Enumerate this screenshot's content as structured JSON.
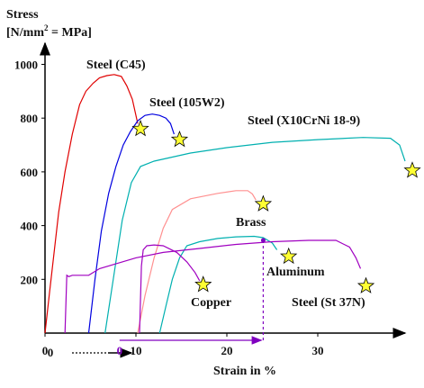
{
  "chart_data": {
    "type": "line",
    "ylabel_line1": "Stress",
    "ylabel_line2_prefix": "[N/mm",
    "ylabel_line2_sup": "2",
    "ylabel_line2_suffix": " = MPa]",
    "xlabel": "Strain in %",
    "xlim": [
      0,
      40
    ],
    "ylim": [
      0,
      1050
    ],
    "x_ticks": [
      0,
      10,
      20,
      30
    ],
    "y_ticks": [
      200,
      400,
      600,
      800,
      1000
    ],
    "offset_annotation": {
      "from_label": "0",
      "to_label": "0",
      "marker_x": 24,
      "marker_y": 345,
      "color": "#8000c0"
    },
    "series": [
      {
        "name": "Steel (C45)",
        "color": "#e00000",
        "x": [
          0,
          0.5,
          1.0,
          1.5,
          2.2,
          3.0,
          3.8,
          4.5,
          5.3,
          6.0,
          6.8,
          7.6,
          8.4,
          9.0,
          9.6,
          10.2
        ],
        "y": [
          0,
          150,
          300,
          450,
          600,
          740,
          850,
          900,
          930,
          950,
          958,
          962,
          955,
          920,
          870,
          780
        ],
        "fracture": [
          10.5,
          760
        ]
      },
      {
        "name": "Steel (105W2)",
        "color": "#0000e0",
        "x": [
          4.8,
          5.5,
          6.2,
          7.0,
          7.8,
          8.6,
          9.4,
          10.2,
          11.0,
          11.8,
          12.6,
          13.3,
          13.8,
          14.2
        ],
        "y": [
          0,
          200,
          380,
          520,
          620,
          700,
          750,
          790,
          810,
          815,
          810,
          800,
          780,
          740
        ],
        "fracture": [
          14.8,
          720
        ]
      },
      {
        "name": "Steel (X10CrNi 18-9)",
        "color": "#00b0b0",
        "x": [
          6.6,
          7.5,
          8.5,
          9.5,
          10.5,
          12.0,
          16.0,
          20.0,
          25.0,
          30.0,
          35.0,
          38.0,
          39.0,
          39.6
        ],
        "y": [
          0,
          200,
          420,
          560,
          620,
          640,
          670,
          690,
          710,
          720,
          728,
          725,
          700,
          640
        ],
        "fracture": [
          40.4,
          605
        ]
      },
      {
        "name": "Brass",
        "color": "#ff9090",
        "x": [
          10.2,
          11.0,
          12.0,
          13.0,
          14.0,
          16.0,
          19.0,
          21.0,
          22.3,
          22.8,
          23.2
        ],
        "y": [
          0,
          140,
          280,
          390,
          460,
          500,
          520,
          530,
          530,
          518,
          495
        ],
        "fracture": [
          24.0,
          480
        ]
      },
      {
        "name": "Aluminum",
        "color": "#00b0b0",
        "x": [
          12.6,
          13.3,
          14.0,
          14.8,
          15.6,
          17.0,
          19.0,
          21.0,
          23.0,
          24.0,
          25.0,
          25.5
        ],
        "y": [
          0,
          100,
          200,
          280,
          325,
          340,
          352,
          358,
          360,
          355,
          335,
          310
        ],
        "fracture": [
          26.8,
          285
        ]
      },
      {
        "name": "Copper",
        "color": "#a000c0",
        "x": [
          10.4,
          10.6,
          10.8,
          11.2,
          12.0,
          13.0,
          14.5,
          15.6,
          16.5,
          17.0
        ],
        "y": [
          0,
          250,
          310,
          325,
          328,
          325,
          300,
          265,
          225,
          195
        ],
        "fracture": [
          17.4,
          180
        ]
      },
      {
        "name": "Steel (St 37N)",
        "color": "#a000c0",
        "x": [
          2.2,
          2.4,
          2.6,
          3.0,
          4.8,
          6.0,
          8.0,
          10.0,
          13.0,
          17.0,
          21.0,
          25.0,
          29.0,
          32.0,
          33.5,
          34.2,
          34.7
        ],
        "y": [
          0,
          215,
          210,
          215,
          215,
          240,
          260,
          280,
          300,
          315,
          330,
          340,
          345,
          345,
          320,
          280,
          240
        ],
        "fracture": [
          35.3,
          175
        ]
      }
    ]
  }
}
